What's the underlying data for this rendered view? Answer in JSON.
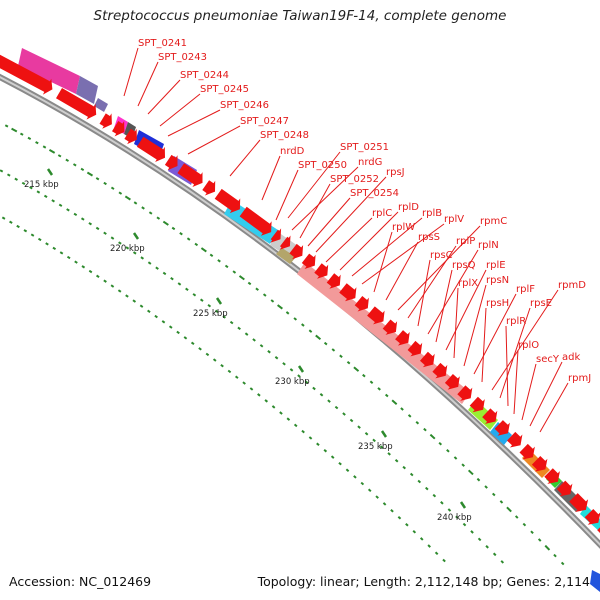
{
  "title": "Streptococcus pneumoniae Taiwan19F-14, complete genome",
  "footer": {
    "accession": "Accession: NC_012469",
    "topology": "Topology: linear; Length: 2,112,148 bp; Genes: 2,114"
  },
  "colors": {
    "backbone": "#8c8c8c",
    "cds": "#ee1111",
    "label": "#e31b1b",
    "gc_tick": "#2d8a2d",
    "ribosomal": "#f29a9a"
  },
  "ticks": [
    "215 kbp",
    "220 kbp",
    "225 kbp",
    "230 kbp",
    "235 kbp",
    "240 kbp"
  ],
  "gene_labels": [
    "SPT_0241",
    "SPT_0243",
    "SPT_0244",
    "SPT_0245",
    "SPT_0246",
    "SPT_0247",
    "SPT_0248",
    "nrdD",
    "SPT_0250",
    "SPT_0251",
    "nrdG",
    "SPT_0252",
    "SPT_0254",
    "rpsJ",
    "rplC",
    "rplD",
    "rplB",
    "rplV",
    "rplW",
    "rpsS",
    "rpmC",
    "rplP",
    "rpsC",
    "rplN",
    "rpsQ",
    "rplE",
    "rplX",
    "rpsN",
    "rplF",
    "rpsH",
    "rpmD",
    "rpsE",
    "rplR",
    "rplO",
    "secY",
    "adk",
    "rpmJ"
  ]
}
